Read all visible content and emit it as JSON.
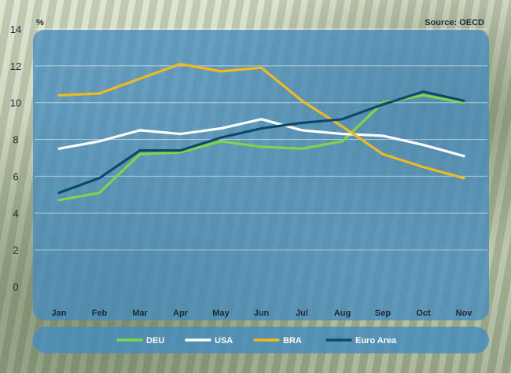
{
  "source": "Source: OECD",
  "colors": {
    "DEU": "#7fd44a",
    "USA": "#ffffff",
    "BRA": "#f2b91d",
    "Euro Area": "#0b4a6a",
    "panel": "#468cbe"
  },
  "chart_data": {
    "type": "line",
    "title": "",
    "xlabel": "",
    "ylabel": "%",
    "categories": [
      "Jan",
      "Feb",
      "Mar",
      "Apr",
      "May",
      "Jun",
      "Jul",
      "Aug",
      "Sep",
      "Oct",
      "Nov"
    ],
    "ylim": [
      0,
      14
    ],
    "yticks": [
      0,
      2,
      4,
      6,
      8,
      10,
      12,
      14
    ],
    "grid": true,
    "legend_position": "bottom",
    "series": [
      {
        "name": "DEU",
        "values": [
          4.7,
          5.1,
          7.2,
          7.3,
          7.9,
          7.6,
          7.5,
          7.9,
          10.0,
          10.4,
          10.0
        ]
      },
      {
        "name": "USA",
        "values": [
          7.5,
          7.9,
          8.5,
          8.3,
          8.6,
          9.1,
          8.5,
          8.3,
          8.2,
          7.7,
          7.1
        ]
      },
      {
        "name": "BRA",
        "values": [
          10.4,
          10.5,
          11.3,
          12.1,
          11.7,
          11.9,
          10.1,
          8.7,
          7.2,
          6.5,
          5.9
        ]
      },
      {
        "name": "Euro Area",
        "values": [
          5.1,
          5.9,
          7.4,
          7.4,
          8.1,
          8.6,
          8.9,
          9.1,
          9.9,
          10.6,
          10.1
        ]
      }
    ]
  }
}
